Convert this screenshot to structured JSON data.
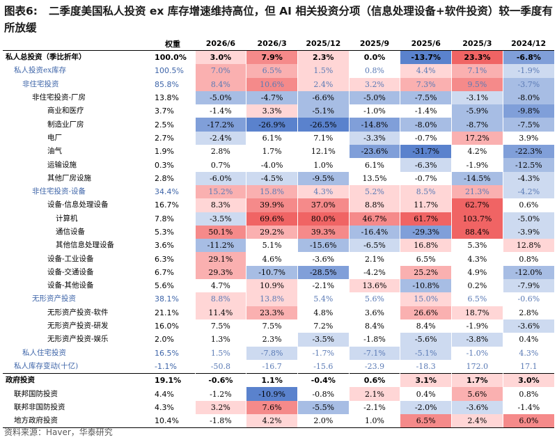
{
  "title": {
    "tag": "图表6:",
    "text": "二季度美国私人投资 ex 库存增速维持高位，但 AI 相关投资分项（信息处理设备+软件投资）较一季度有所放缓"
  },
  "columns": [
    "",
    "权重",
    "2026/6",
    "2026/3",
    "2025/12",
    "2025/9",
    "2025/6",
    "2025/3",
    "2024/12"
  ],
  "colors": {
    "blue_text": "#3d64a8",
    "heat_positive": "#ee5a5a",
    "heat_negative": "#4a78c8"
  },
  "rows": [
    {
      "label": "私人总投资（季比折年）",
      "indent": 0,
      "style": "bold",
      "weight": "100.0%",
      "values": [
        "3.0%",
        "7.9%",
        "2.3%",
        "0.0%",
        "-13.7%",
        "23.3%",
        "-6.8%"
      ]
    },
    {
      "label": "私人投资ex库存",
      "indent": 1,
      "style": "blue",
      "weight": "100.5%",
      "values": [
        "7.0%",
        "6.5%",
        "1.5%",
        "0.8%",
        "4.4%",
        "7.1%",
        "-1.9%"
      ]
    },
    {
      "label": "非住宅投资",
      "indent": 2,
      "style": "blue",
      "weight": "85.8%",
      "values": [
        "8.4%",
        "10.6%",
        "2.4%",
        "3.2%",
        "7.3%",
        "9.5%",
        "-3.7%"
      ]
    },
    {
      "label": "非住宅投资-厂房",
      "indent": 3,
      "style": "normal",
      "weight": "13.8%",
      "values": [
        "-5.0%",
        "-4.7%",
        "-6.6%",
        "-5.0%",
        "-7.5%",
        "-3.1%",
        "-8.0%"
      ]
    },
    {
      "label": "商业和医疗",
      "indent": 4,
      "style": "normal",
      "weight": "3.7%",
      "values": [
        "-1.4%",
        "3.3%",
        "-5.1%",
        "-1.0%",
        "-1.4%",
        "-5.9%",
        "-9.8%"
      ]
    },
    {
      "label": "制造业厂房",
      "indent": 4,
      "style": "normal",
      "weight": "2.5%",
      "values": [
        "-17.2%",
        "-26.9%",
        "-26.5%",
        "-14.8%",
        "-8.0%",
        "-8.7%",
        "-7.5%"
      ]
    },
    {
      "label": "电厂",
      "indent": 4,
      "style": "normal",
      "weight": "2.7%",
      "values": [
        "-2.4%",
        "6.1%",
        "7.1%",
        "-3.3%",
        "-0.7%",
        "17.2%",
        "3.9%"
      ]
    },
    {
      "label": "油气",
      "indent": 4,
      "style": "normal",
      "weight": "1.9%",
      "values": [
        "2.8%",
        "1.7%",
        "12.1%",
        "-23.6%",
        "-31.7%",
        "4.2%",
        "-22.3%"
      ]
    },
    {
      "label": "运输设施",
      "indent": 4,
      "style": "normal",
      "weight": "0.3%",
      "values": [
        "0.7%",
        "-4.0%",
        "1.0%",
        "6.1%",
        "-6.3%",
        "-1.9%",
        "-12.5%"
      ]
    },
    {
      "label": "其他厂房设施",
      "indent": 4,
      "style": "normal",
      "weight": "2.8%",
      "values": [
        "-6.0%",
        "-4.5%",
        "-9.5%",
        "13.5%",
        "-0.7%",
        "-14.5%",
        "-4.3%"
      ]
    },
    {
      "label": "非住宅投资-设备",
      "indent": 3,
      "style": "blue",
      "weight": "34.4%",
      "values": [
        "15.2%",
        "15.8%",
        "4.3%",
        "5.2%",
        "8.5%",
        "21.3%",
        "-4.2%"
      ]
    },
    {
      "label": "设备-信息处理设备",
      "indent": 4,
      "style": "normal",
      "weight": "16.7%",
      "values": [
        "8.3%",
        "39.9%",
        "37.0%",
        "8.8%",
        "11.7%",
        "62.7%",
        "0.6%"
      ]
    },
    {
      "label": "计算机",
      "indent": 5,
      "style": "normal",
      "weight": "7.8%",
      "values": [
        "-3.5%",
        "69.6%",
        "80.0%",
        "46.7%",
        "61.7%",
        "103.7%",
        "-5.0%"
      ]
    },
    {
      "label": "通信设备",
      "indent": 5,
      "style": "normal",
      "weight": "5.3%",
      "values": [
        "50.1%",
        "29.2%",
        "39.3%",
        "-16.4%",
        "-29.3%",
        "88.4%",
        "-3.9%"
      ]
    },
    {
      "label": "其他信息处理设备",
      "indent": 5,
      "style": "normal",
      "weight": "3.6%",
      "values": [
        "-11.2%",
        "5.1%",
        "-15.6%",
        "-6.5%",
        "16.8%",
        "5.3%",
        "12.8%"
      ]
    },
    {
      "label": "设备-工业设备",
      "indent": 4,
      "style": "normal",
      "weight": "6.3%",
      "values": [
        "29.1%",
        "4.6%",
        "-3.6%",
        "2.1%",
        "6.5%",
        "4.3%",
        "0.8%"
      ]
    },
    {
      "label": "设备-交通设备",
      "indent": 4,
      "style": "normal",
      "weight": "6.7%",
      "values": [
        "29.3%",
        "-10.7%",
        "-28.5%",
        "-4.2%",
        "25.2%",
        "4.9%",
        "-12.0%"
      ]
    },
    {
      "label": "设备-其他设备",
      "indent": 4,
      "style": "normal",
      "weight": "5.6%",
      "values": [
        "4.7%",
        "10.9%",
        "-2.1%",
        "13.6%",
        "-10.8%",
        "0.2%",
        "-7.9%"
      ]
    },
    {
      "label": "无形资产投资",
      "indent": 3,
      "style": "blue",
      "weight": "38.1%",
      "values": [
        "8.8%",
        "13.8%",
        "5.4%",
        "5.6%",
        "15.0%",
        "6.5%",
        "-0.6%"
      ]
    },
    {
      "label": "无形资产投资-软件",
      "indent": 4,
      "style": "normal",
      "weight": "21.1%",
      "values": [
        "11.4%",
        "23.3%",
        "4.8%",
        "3.6%",
        "26.6%",
        "18.7%",
        "2.8%"
      ]
    },
    {
      "label": "无形资产投资-研发",
      "indent": 4,
      "style": "normal",
      "weight": "16.0%",
      "values": [
        "7.5%",
        "7.5%",
        "7.2%",
        "8.4%",
        "8.4%",
        "-1.9%",
        "-3.6%"
      ]
    },
    {
      "label": "无形资产投资-娱乐",
      "indent": 4,
      "style": "normal",
      "weight": "2.0%",
      "values": [
        "1.3%",
        "2.3%",
        "-3.5%",
        "-1.8%",
        "-5.6%",
        "-3.8%",
        "0.4%"
      ]
    },
    {
      "label": "私人住宅投资",
      "indent": 2,
      "style": "blue",
      "weight": "16.5%",
      "values": [
        "1.5%",
        "-7.8%",
        "-1.7%",
        "-7.1%",
        "-5.1%",
        "-1.0%",
        "4.3%"
      ]
    },
    {
      "label": "私人库存变动(十亿)",
      "indent": 1,
      "style": "blue",
      "weight": "-1.1%",
      "values": [
        "-50.8",
        "-16.7",
        "-15.6",
        "-23.9",
        "-18.3",
        "172.0",
        "17.1"
      ]
    },
    {
      "label": "政府投资",
      "indent": 0,
      "style": "bold",
      "weight": "19.1%",
      "values": [
        "-0.6%",
        "1.1%",
        "-0.4%",
        "0.6%",
        "3.1%",
        "1.7%",
        "3.0%"
      ]
    },
    {
      "label": "联邦国防投资",
      "indent": 1,
      "style": "normal",
      "weight": "4.4%",
      "values": [
        "-1.2%",
        "-10.9%",
        "-0.8%",
        "2.1%",
        "0.4%",
        "5.6%",
        "0.8%"
      ]
    },
    {
      "label": "联邦非国防投资",
      "indent": 1,
      "style": "normal",
      "weight": "4.3%",
      "values": [
        "3.2%",
        "7.6%",
        "-5.5%",
        "-2.1%",
        "-2.0%",
        "-3.6%",
        "-1.4%"
      ]
    },
    {
      "label": "地方政府投资",
      "indent": 1,
      "style": "normal",
      "weight": "10.4%",
      "values": [
        "-1.8%",
        "4.2%",
        "2.0%",
        "1.0%",
        "6.5%",
        "2.4%",
        "6.0%"
      ]
    }
  ],
  "heat_levels": [
    [
      1,
      3,
      1,
      0,
      -4,
      4,
      -3
    ],
    [
      2,
      2,
      1,
      0,
      1,
      2,
      -1
    ],
    [
      2,
      3,
      1,
      1,
      2,
      3,
      -2
    ],
    [
      -2,
      -2,
      -2,
      -2,
      -2,
      -1,
      -2
    ],
    [
      0,
      1,
      -2,
      0,
      0,
      -2,
      -3
    ],
    [
      -3,
      -4,
      -4,
      -3,
      -2,
      -2,
      -2
    ],
    [
      -1,
      0,
      0,
      -1,
      0,
      2,
      0
    ],
    [
      0,
      0,
      0,
      -3,
      -4,
      0,
      -3
    ],
    [
      0,
      0,
      0,
      0,
      -1,
      0,
      -2
    ],
    [
      -1,
      -1,
      -2,
      0,
      0,
      -2,
      -1
    ],
    [
      2,
      2,
      1,
      1,
      1,
      2,
      -1
    ],
    [
      1,
      3,
      3,
      1,
      1,
      4,
      0
    ],
    [
      -1,
      4,
      4,
      3,
      4,
      4,
      -1
    ],
    [
      3,
      2,
      3,
      -2,
      -3,
      4,
      -1
    ],
    [
      -2,
      0,
      -2,
      -1,
      1,
      0,
      1
    ],
    [
      2,
      0,
      0,
      0,
      0,
      0,
      0
    ],
    [
      2,
      -2,
      -3,
      0,
      2,
      0,
      -2
    ],
    [
      0,
      1,
      0,
      1,
      -2,
      0,
      -1
    ],
    [
      1,
      1,
      0,
      0,
      1,
      0,
      0
    ],
    [
      1,
      2,
      0,
      0,
      2,
      1,
      0
    ],
    [
      0,
      0,
      0,
      0,
      0,
      0,
      -1
    ],
    [
      0,
      0,
      -1,
      0,
      -1,
      -1,
      0
    ],
    [
      0,
      -1,
      0,
      -1,
      -1,
      0,
      0
    ],
    [
      0,
      0,
      0,
      0,
      0,
      0,
      0
    ],
    [
      0,
      0,
      0,
      0,
      1,
      1,
      1
    ],
    [
      0,
      -4,
      0,
      1,
      0,
      2,
      0
    ],
    [
      1,
      3,
      -2,
      0,
      -1,
      -1,
      0
    ],
    [
      0,
      1,
      0,
      0,
      3,
      1,
      3
    ]
  ],
  "source": "资料来源：Haver，华泰研究"
}
